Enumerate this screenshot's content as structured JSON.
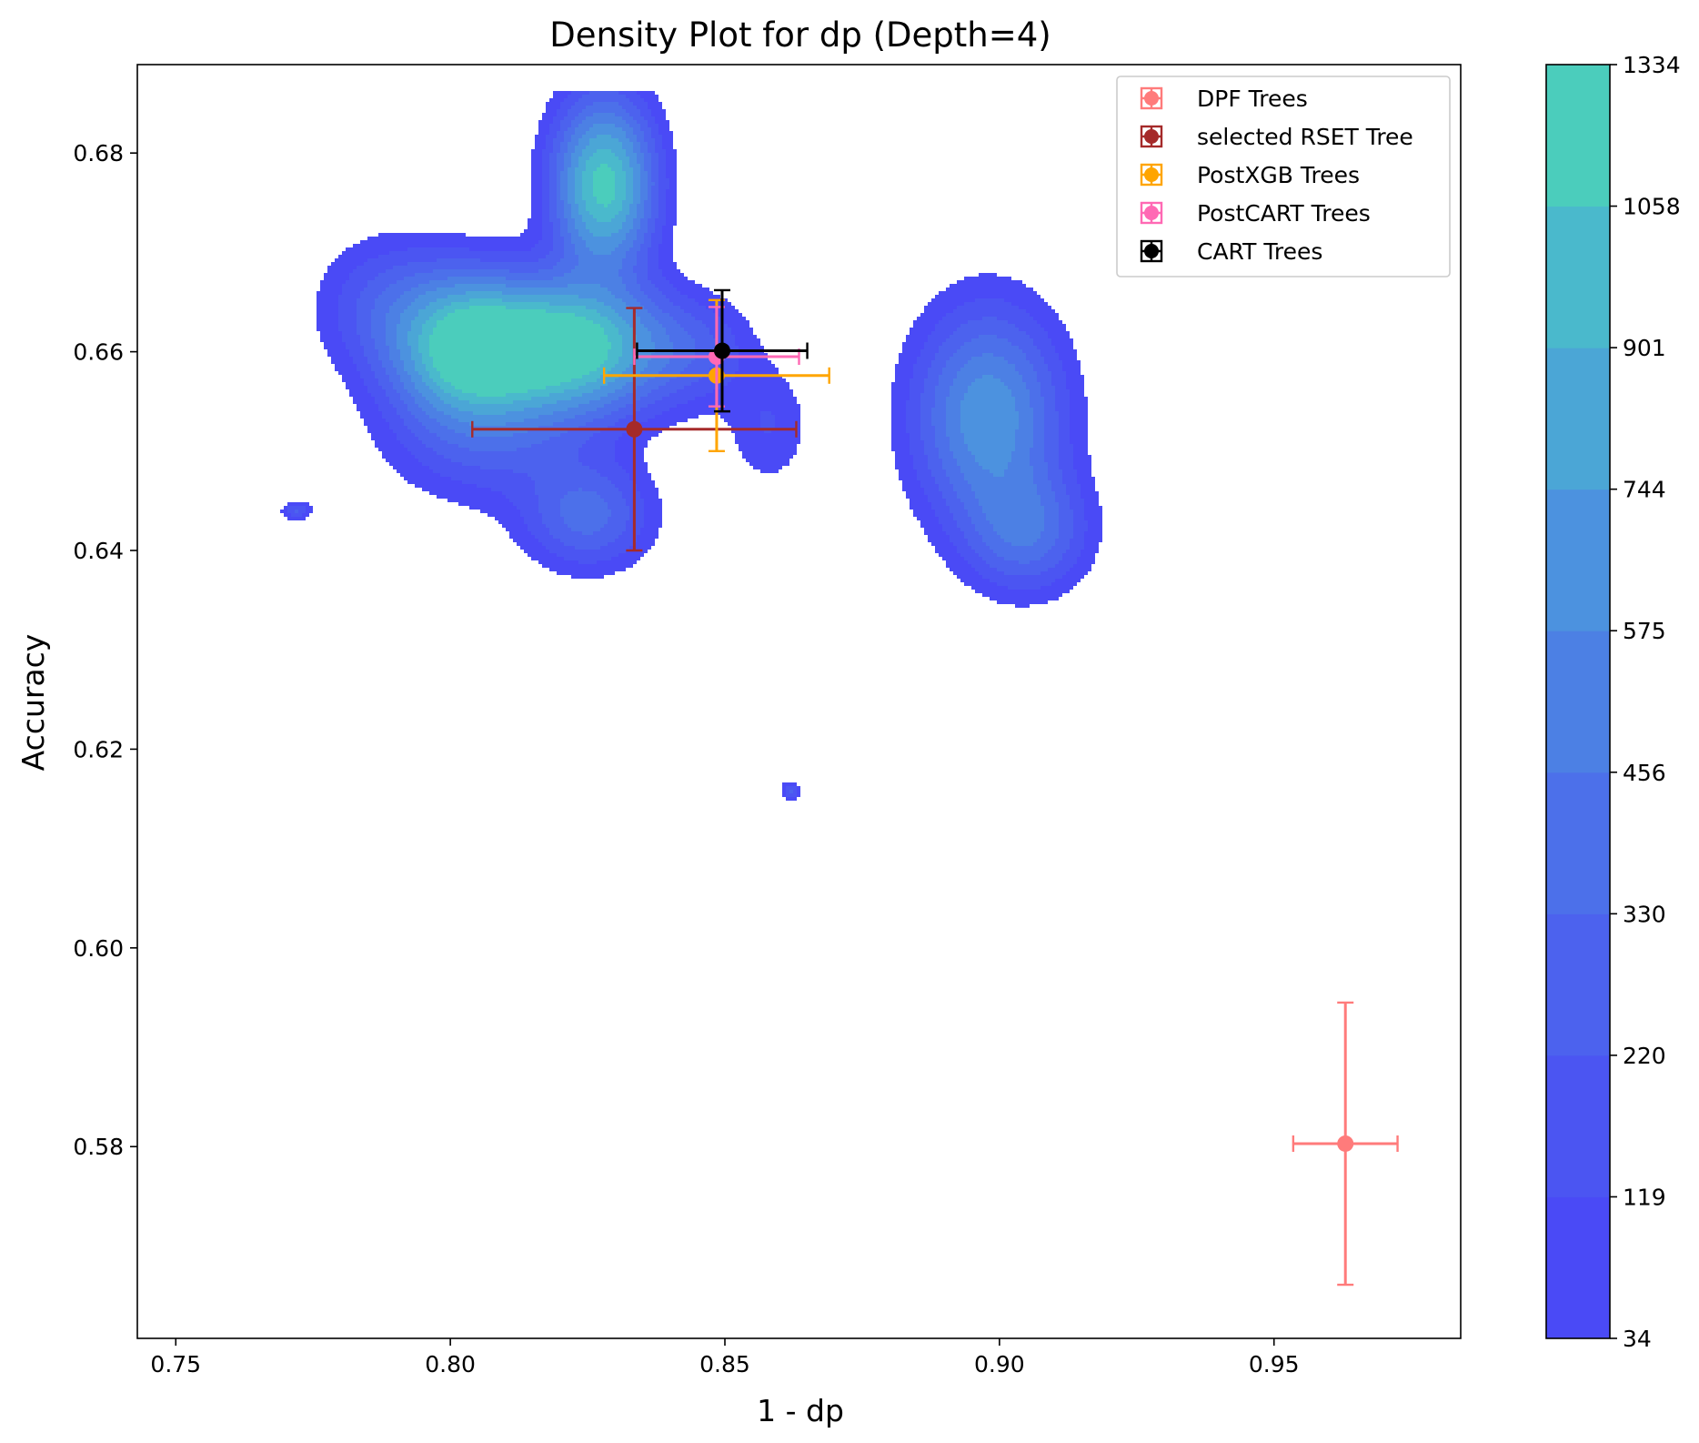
{
  "chart_data": {
    "type": "scatter",
    "title": "Density Plot for dp (Depth=4)",
    "xlabel": "1 - dp",
    "ylabel": "Accuracy",
    "xlim": [
      0.743,
      0.984
    ],
    "ylim": [
      0.5607,
      0.6889
    ],
    "xticks": [
      {
        "value": 0.75,
        "label": "0.75"
      },
      {
        "value": 0.8,
        "label": "0.80"
      },
      {
        "value": 0.85,
        "label": "0.85"
      },
      {
        "value": 0.9,
        "label": "0.90"
      },
      {
        "value": 0.95,
        "label": "0.95"
      }
    ],
    "yticks": [
      {
        "value": 0.58,
        "label": "0.58"
      },
      {
        "value": 0.6,
        "label": "0.60"
      },
      {
        "value": 0.62,
        "label": "0.62"
      },
      {
        "value": 0.64,
        "label": "0.64"
      },
      {
        "value": 0.66,
        "label": "0.66"
      },
      {
        "value": 0.68,
        "label": "0.68"
      }
    ],
    "grid": false,
    "legend_position": "upper right",
    "colorbar": {
      "levels": [
        "34",
        "119",
        "220",
        "330",
        "456",
        "575",
        "744",
        "901",
        "1058",
        "1334"
      ],
      "colors": [
        "#4a4af6",
        "#4b55f2",
        "#4c62ee",
        "#4c70ea",
        "#4c80e4",
        "#4c92df",
        "#4ba6d6",
        "#4ab9cc",
        "#4bcdbc",
        "#4ce8a5"
      ]
    },
    "density": {
      "description_free": true,
      "components": [
        {
          "cx": 0.803,
          "cy": 0.6603,
          "sx": 0.0085,
          "sy": 0.0046,
          "w": 0.85
        },
        {
          "cx": 0.821,
          "cy": 0.6605,
          "sx": 0.0115,
          "sy": 0.0042,
          "w": 1.0
        },
        {
          "cx": 0.828,
          "cy": 0.6768,
          "sx": 0.0058,
          "sy": 0.0055,
          "w": 0.88
        },
        {
          "cx": 0.789,
          "cy": 0.6645,
          "sx": 0.0085,
          "sy": 0.0045,
          "w": 0.2
        },
        {
          "cx": 0.808,
          "cy": 0.6515,
          "sx": 0.0125,
          "sy": 0.0045,
          "w": 0.2
        },
        {
          "cx": 0.825,
          "cy": 0.6435,
          "sx": 0.0075,
          "sy": 0.0035,
          "w": 0.3
        },
        {
          "cx": 0.845,
          "cy": 0.66,
          "sx": 0.007,
          "sy": 0.0035,
          "w": 0.15
        },
        {
          "cx": 0.858,
          "cy": 0.6525,
          "sx": 0.005,
          "sy": 0.004,
          "w": 0.12
        },
        {
          "cx": 0.898,
          "cy": 0.6535,
          "sx": 0.0085,
          "sy": 0.0068,
          "w": 0.55
        },
        {
          "cx": 0.905,
          "cy": 0.642,
          "sx": 0.0072,
          "sy": 0.004,
          "w": 0.32
        },
        {
          "cx": 0.772,
          "cy": 0.644,
          "sx": 0.0018,
          "sy": 0.0006,
          "w": 0.2
        },
        {
          "cx": 0.862,
          "cy": 0.6158,
          "sx": 0.0012,
          "sy": 0.0006,
          "w": 0.2
        }
      ]
    },
    "series": [
      {
        "name": "DPF Trees",
        "color": "#ff4444",
        "opacity": 0.7,
        "x": 0.963,
        "y": 0.5803,
        "xerr": 0.0095,
        "yerr": 0.0142
      },
      {
        "name": "selected RSET Tree",
        "color": "#a52a2a",
        "opacity": 1.0,
        "x": 0.8335,
        "y": 0.6522,
        "xerr": 0.0295,
        "yerr": 0.0122
      },
      {
        "name": "PostXGB Trees",
        "color": "#ffa500",
        "opacity": 1.0,
        "x": 0.8485,
        "y": 0.6576,
        "xerr": 0.0205,
        "yerr": 0.0076
      },
      {
        "name": "PostCART Trees",
        "color": "#ff69b4",
        "opacity": 1.0,
        "x": 0.8485,
        "y": 0.6595,
        "xerr": 0.015,
        "yerr": 0.005
      },
      {
        "name": "CART Trees",
        "color": "#000000",
        "opacity": 1.0,
        "x": 0.8495,
        "y": 0.6601,
        "xerr": 0.0155,
        "yerr": 0.0061
      }
    ]
  }
}
